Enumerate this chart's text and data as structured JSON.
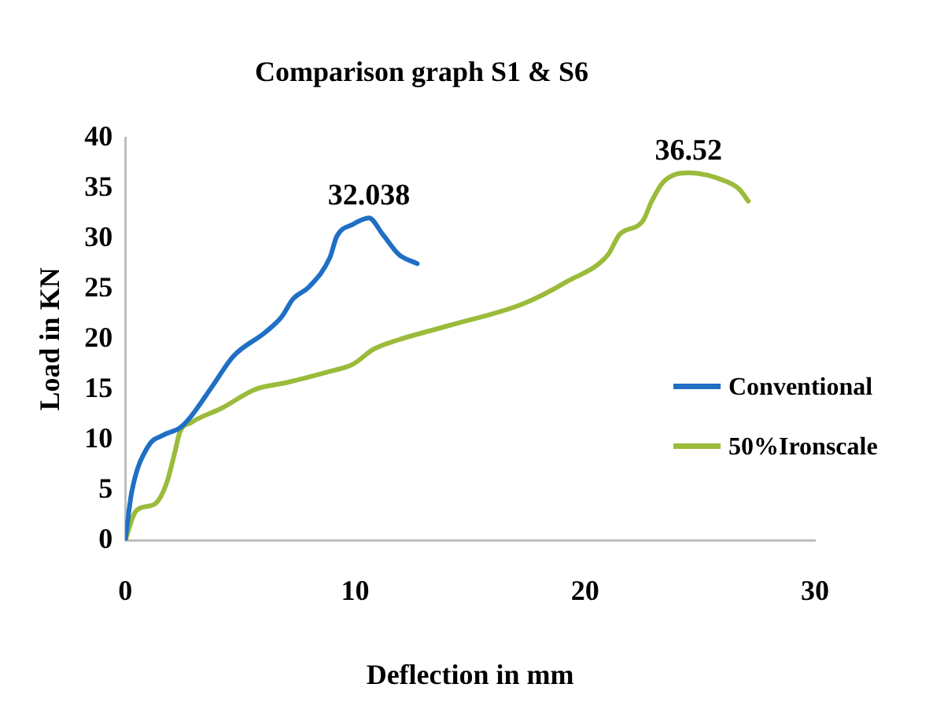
{
  "chart_data": {
    "type": "line",
    "title": "Comparison graph S1 & S6",
    "xlabel": "Deflection in mm",
    "ylabel": "Load in KN",
    "xlim": [
      0,
      30
    ],
    "xticks": [
      0,
      10,
      20,
      30
    ],
    "ylim": [
      0,
      40
    ],
    "yticks": [
      0,
      5,
      10,
      15,
      20,
      25,
      30,
      35,
      40
    ],
    "grid": false,
    "legend": "right",
    "marker": "none",
    "line_style": "solid",
    "series": [
      {
        "name": "Conventional",
        "color": "#1f6fc5",
        "x": [
          0,
          0.28,
          0.98,
          1.68,
          2.38,
          2.85,
          3.78,
          4.7,
          6.1,
          6.8,
          7.3,
          8.0,
          8.9,
          9.2,
          9.9,
          10.6,
          11.2,
          11.9,
          12.7
        ],
        "values": [
          0,
          4.8,
          9.3,
          10.5,
          11.2,
          12.3,
          15.3,
          18.3,
          20.7,
          22.2,
          24,
          25.2,
          28.1,
          30.2,
          31.4,
          32.038,
          30.4,
          28.4,
          27.5
        ],
        "value_labels": [
          null,
          null,
          null,
          null,
          null,
          null,
          null,
          null,
          null,
          null,
          null,
          null,
          null,
          null,
          null,
          "32.038",
          null,
          null,
          null
        ]
      },
      {
        "name": "50%Ironscale",
        "color": "#9bbb3b",
        "x": [
          0,
          0.4,
          0.75,
          1.33,
          1.8,
          2.15,
          2.38,
          2.85,
          4.24,
          5.64,
          7.04,
          8.9,
          9.9,
          10.8,
          11.7,
          14.0,
          17.3,
          19.2,
          21.0,
          21.5,
          22.5,
          22.9,
          23.4,
          24.5,
          26.2,
          26.7,
          27.1
        ],
        "values": [
          0,
          2.7,
          3.3,
          3.7,
          5.7,
          8.7,
          10.8,
          11.7,
          13.2,
          15,
          15.7,
          16.8,
          17.5,
          19,
          19.8,
          21.3,
          23.5,
          25.7,
          28.4,
          30.4,
          31.7,
          33.7,
          35.6,
          36.52,
          35.6,
          34.9,
          33.7
        ],
        "value_labels": [
          null,
          null,
          null,
          null,
          null,
          null,
          null,
          null,
          null,
          null,
          null,
          null,
          null,
          null,
          null,
          null,
          null,
          null,
          null,
          null,
          null,
          null,
          null,
          "36.52",
          null,
          null,
          null
        ]
      }
    ]
  }
}
